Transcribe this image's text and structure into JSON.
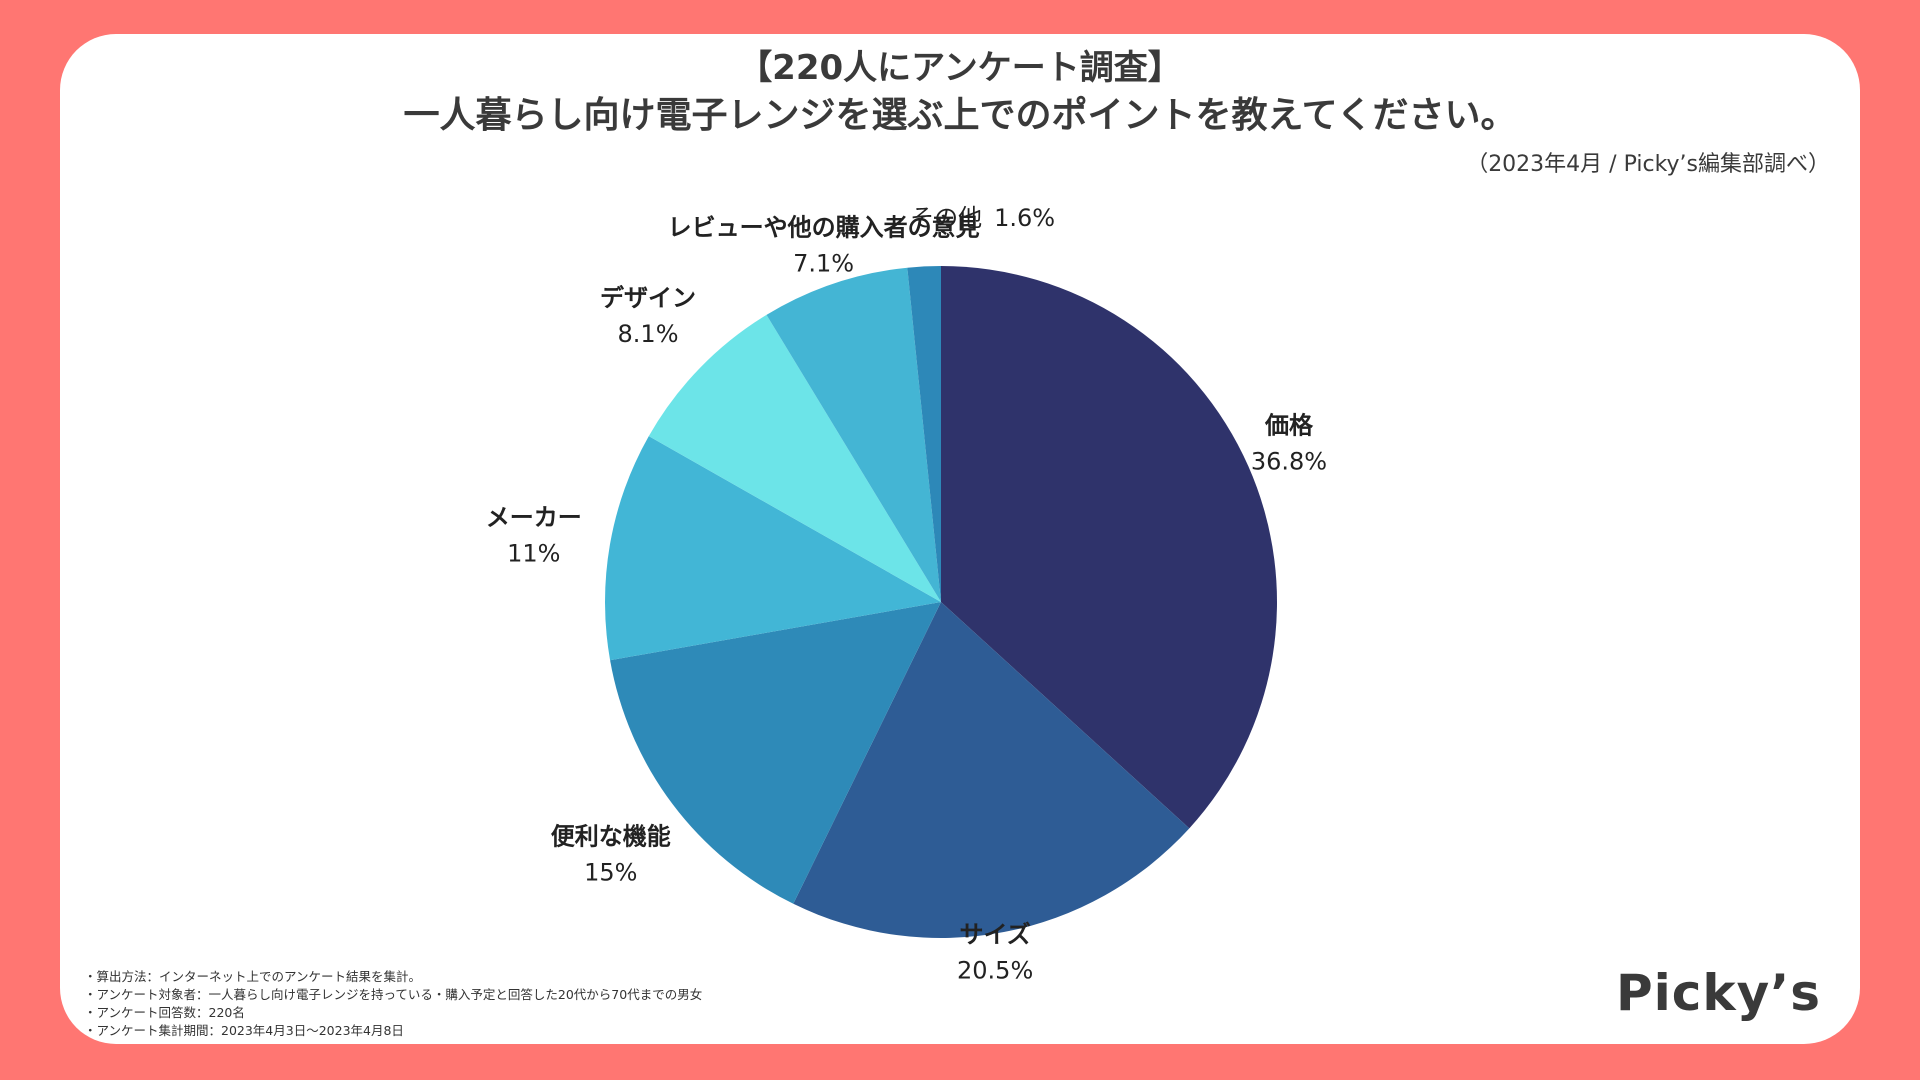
{
  "title_line1": "【220人にアンケート調査】",
  "title_line2": "一人暮らし向け電子レンジを選ぶ上でのポイントを教えてください。",
  "source": "（2023年4月 / Picky’s編集部調べ）",
  "notes": [
    "・算出方法：インターネット上でのアンケート結果を集計。",
    "・アンケート対象者：一人暮らし向け電子レンジを持っている・購入予定と回答した20代から70代までの男女",
    "・アンケート回答数：220名",
    "・アンケート集計期間：2023年4月3日〜2023年4月8日"
  ],
  "brand": "Picky’s",
  "colors": {
    "background": "#ff7672",
    "card": "#ffffff",
    "text": "#3a3a3a"
  },
  "chart_data": {
    "type": "pie",
    "slices": [
      {
        "label": "価格",
        "value": 36.8,
        "display": "36.8%",
        "color": "#2f336b"
      },
      {
        "label": "サイズ",
        "value": 20.5,
        "display": "20.5%",
        "color": "#2e5c95"
      },
      {
        "label": "便利な機能",
        "value": 15,
        "display": "15%",
        "color": "#2e8ab8"
      },
      {
        "label": "メーカー",
        "value": 11,
        "display": "11%",
        "color": "#42b6d6"
      },
      {
        "label": "デザイン",
        "value": 8.1,
        "display": "8.1%",
        "color": "#6ce4e8"
      },
      {
        "label": "レビューや他の購入者の意見",
        "value": 7.1,
        "display": "7.1%",
        "color": "#44b5d4"
      },
      {
        "label": "その他",
        "value": 1.6,
        "display": "1.6%",
        "color": "#2d88b8"
      }
    ],
    "start": "12 o'clock",
    "direction": "clockwise"
  }
}
